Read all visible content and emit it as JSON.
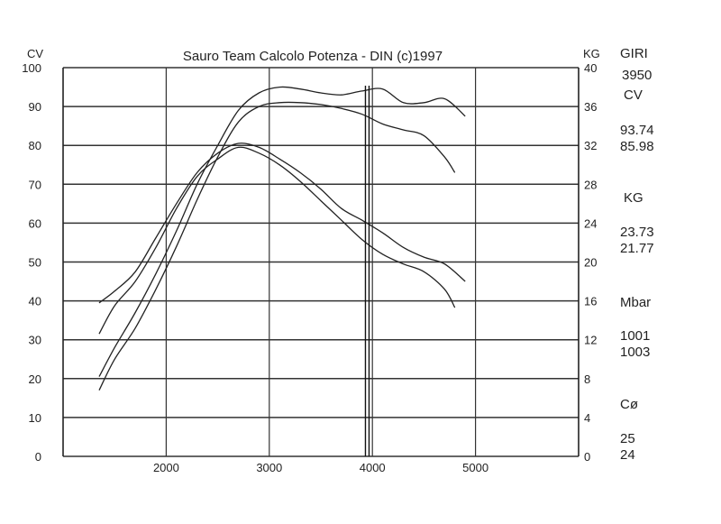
{
  "chart_data": {
    "type": "line",
    "title": "Sauro Team Calcolo Potenza - DIN  (c)1997",
    "left_axis_unit": "CV",
    "right_axis_unit": "KG",
    "x_ticks": [
      2000,
      3000,
      4000,
      5000
    ],
    "xlim": [
      1000,
      6000
    ],
    "y_left_ticks": [
      0,
      10,
      20,
      30,
      40,
      50,
      60,
      70,
      80,
      90,
      100
    ],
    "y_left_lim": [
      0,
      100
    ],
    "y_right_ticks": [
      0,
      4,
      8,
      12,
      16,
      20,
      24,
      28,
      32,
      36,
      40
    ],
    "y_right_lim": [
      0,
      40
    ],
    "grid": true,
    "cursor_rpm": 3950,
    "series": [
      {
        "axis": "left",
        "x": [
          1350,
          1500,
          1700,
          1900,
          2100,
          2300,
          2500,
          2700,
          2900,
          3100,
          3300,
          3500,
          3700,
          3900,
          4100,
          4300,
          4500,
          4700,
          4900
        ],
        "values": [
          20.5,
          28,
          37,
          47,
          58,
          70,
          80,
          89,
          93.5,
          95,
          94.5,
          93.5,
          93,
          94,
          94.5,
          91,
          91,
          92,
          87.5
        ]
      },
      {
        "axis": "left",
        "x": [
          1350,
          1500,
          1700,
          1900,
          2100,
          2300,
          2500,
          2700,
          2900,
          3100,
          3300,
          3500,
          3700,
          3900,
          4100,
          4300,
          4500,
          4700,
          4800
        ],
        "values": [
          17,
          25,
          33,
          43,
          54,
          66,
          77,
          86,
          90,
          91,
          91,
          90.5,
          89.5,
          88,
          85.5,
          84,
          82.5,
          77,
          73
        ]
      },
      {
        "axis": "right",
        "x": [
          1350,
          1500,
          1700,
          1900,
          2100,
          2300,
          2500,
          2700,
          2900,
          3100,
          3300,
          3500,
          3700,
          3900,
          4100,
          4300,
          4500,
          4700,
          4900
        ],
        "values": [
          15.8,
          17,
          19,
          22.5,
          26,
          29.2,
          31.2,
          32.2,
          31.8,
          30.6,
          29.2,
          27.5,
          25.5,
          24.3,
          23,
          21.5,
          20.5,
          19.8,
          18
        ]
      },
      {
        "axis": "right",
        "x": [
          1350,
          1500,
          1700,
          1900,
          2100,
          2300,
          2500,
          2700,
          2900,
          3100,
          3300,
          3500,
          3700,
          3900,
          4100,
          4300,
          4500,
          4700,
          4800
        ],
        "values": [
          12.6,
          15.5,
          18,
          21.5,
          25.5,
          28.8,
          30.6,
          31.8,
          31.2,
          30,
          28.3,
          26.3,
          24.3,
          22.3,
          20.8,
          19.8,
          19,
          17.2,
          15.3
        ]
      }
    ]
  },
  "side_panel": {
    "giri_label": "GIRI",
    "giri_value": "3950",
    "cv_label": "CV",
    "cv_values": [
      "93.74",
      "85.98"
    ],
    "kg_label": "KG",
    "kg_values": [
      "23.73",
      "21.77"
    ],
    "mbar_label": "Mbar",
    "mbar_values": [
      "1001",
      "1003"
    ],
    "temp_label": "Cø",
    "temp_values": [
      "25",
      "24"
    ]
  }
}
